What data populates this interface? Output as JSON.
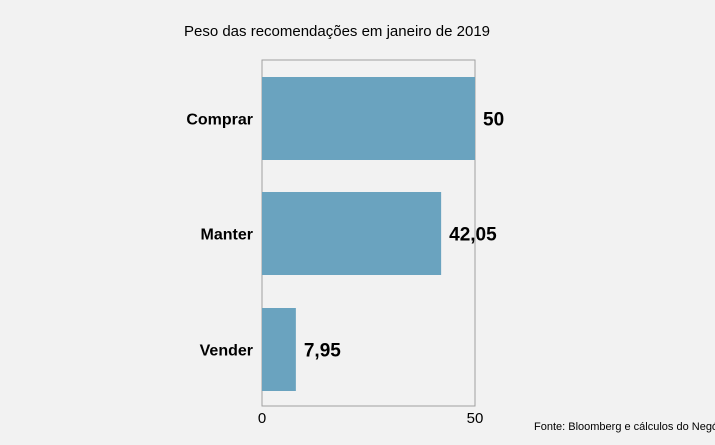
{
  "chart_data": {
    "type": "bar",
    "orientation": "horizontal",
    "title": "Peso das recomendações em janeiro de 2019",
    "categories": [
      "Comprar",
      "Manter",
      "Vender"
    ],
    "values": [
      50,
      42.05,
      7.95
    ],
    "value_labels": [
      "50",
      "42,05",
      "7,95"
    ],
    "xlim": [
      0,
      50
    ],
    "x_ticks": [
      0,
      50
    ],
    "x_tick_labels": [
      "0",
      "50"
    ],
    "grid": false,
    "bar_color": "#6aa3bf",
    "frame_color": "#a0a0a0",
    "source": "Fonte: Bloomberg  e cálculos do Negócios"
  }
}
